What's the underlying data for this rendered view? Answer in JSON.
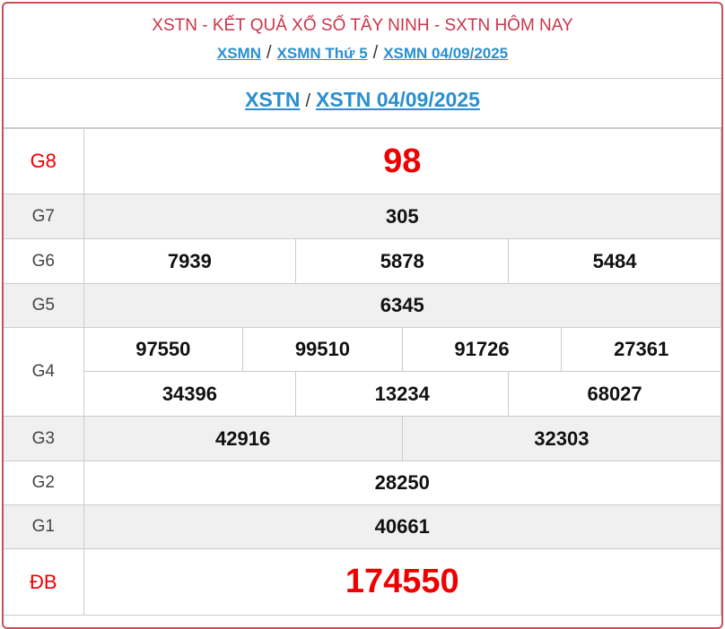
{
  "header": {
    "title": "XSTN - KẾT QUẢ XỔ SỐ TÂY NINH - SXTN HÔM NAY",
    "breadcrumb": [
      "XSMN",
      "XSMN Thứ 5",
      "XSMN 04/09/2025"
    ],
    "separator": "/"
  },
  "subheader": {
    "links": [
      "XSTN",
      "XSTN 04/09/2025"
    ],
    "separator": "/"
  },
  "prizes": {
    "g8": {
      "label": "G8",
      "values": [
        "98"
      ]
    },
    "g7": {
      "label": "G7",
      "values": [
        "305"
      ]
    },
    "g6": {
      "label": "G6",
      "values": [
        "7939",
        "5878",
        "5484"
      ]
    },
    "g5": {
      "label": "G5",
      "values": [
        "6345"
      ]
    },
    "g4": {
      "label": "G4",
      "values": [
        "97550",
        "99510",
        "91726",
        "27361",
        "34396",
        "13234",
        "68027"
      ]
    },
    "g3": {
      "label": "G3",
      "values": [
        "42916",
        "32303"
      ]
    },
    "g2": {
      "label": "G2",
      "values": [
        "28250"
      ]
    },
    "g1": {
      "label": "G1",
      "values": [
        "40661"
      ]
    },
    "db": {
      "label": "ĐB",
      "values": [
        "174550"
      ]
    }
  },
  "colors": {
    "accent_red": "#e00000",
    "link_blue": "#2a8fd0",
    "border": "#c9505a"
  }
}
